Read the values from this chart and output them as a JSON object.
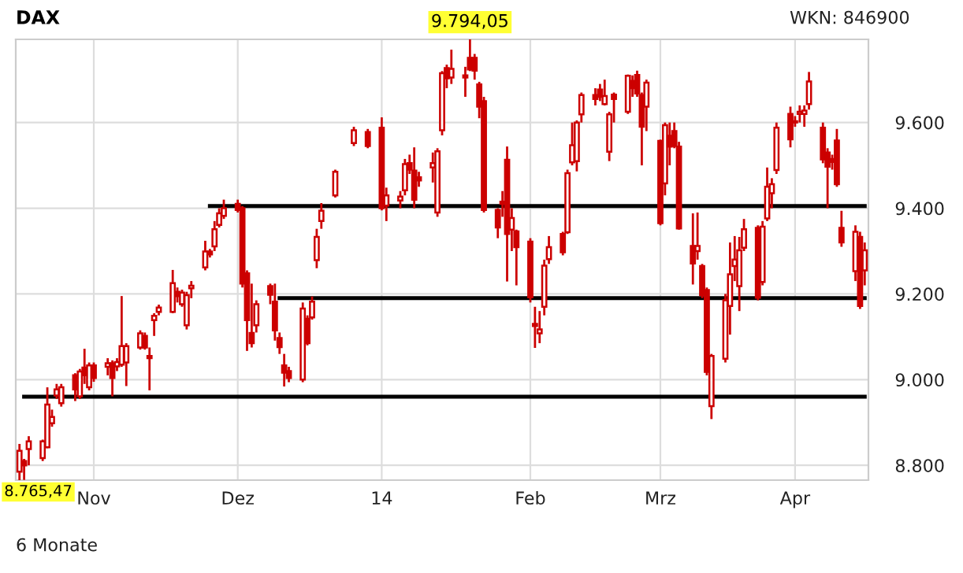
{
  "chart_data": {
    "type": "candlestick",
    "title": "DAX",
    "color": "#cc0000",
    "x": [
      "2013-10-16",
      "2013-10-17",
      "2013-10-18",
      "2013-10-21",
      "2013-10-22",
      "2013-10-23",
      "2013-10-24",
      "2013-10-25",
      "2013-10-28",
      "2013-10-29",
      "2013-10-30",
      "2013-10-31",
      "2013-11-01",
      "2013-11-04",
      "2013-11-05",
      "2013-11-06",
      "2013-11-07",
      "2013-11-08",
      "2013-11-11",
      "2013-11-12",
      "2013-11-13",
      "2013-11-14",
      "2013-11-15",
      "2013-11-18",
      "2013-11-19",
      "2013-11-20",
      "2013-11-21",
      "2013-11-22",
      "2013-11-25",
      "2013-11-26",
      "2013-11-27",
      "2013-11-28",
      "2013-11-29",
      "2013-12-02",
      "2013-12-03",
      "2013-12-04",
      "2013-12-05",
      "2013-12-06",
      "2013-12-09",
      "2013-12-10",
      "2013-12-11",
      "2013-12-12",
      "2013-12-13",
      "2013-12-16",
      "2013-12-17",
      "2013-12-18",
      "2013-12-19",
      "2013-12-20",
      "2013-12-23",
      "2013-12-27",
      "2013-12-30",
      "2014-01-02",
      "2014-01-03",
      "2014-01-06",
      "2014-01-07",
      "2014-01-08",
      "2014-01-09",
      "2014-01-10",
      "2014-01-13",
      "2014-01-14",
      "2014-01-15",
      "2014-01-16",
      "2014-01-17",
      "2014-01-20",
      "2014-01-21",
      "2014-01-22",
      "2014-01-23",
      "2014-01-24",
      "2014-01-27",
      "2014-01-28",
      "2014-01-29",
      "2014-01-30",
      "2014-01-31",
      "2014-02-03",
      "2014-02-04",
      "2014-02-05",
      "2014-02-06",
      "2014-02-07",
      "2014-02-10",
      "2014-02-11",
      "2014-02-12",
      "2014-02-13",
      "2014-02-14",
      "2014-02-17",
      "2014-02-18",
      "2014-02-19",
      "2014-02-20",
      "2014-02-21",
      "2014-02-24",
      "2014-02-25",
      "2014-02-26",
      "2014-02-27",
      "2014-02-28",
      "2014-03-03",
      "2014-03-04",
      "2014-03-05",
      "2014-03-06",
      "2014-03-07",
      "2014-03-10",
      "2014-03-11",
      "2014-03-12",
      "2014-03-13",
      "2014-03-14",
      "2014-03-17",
      "2014-03-18",
      "2014-03-19",
      "2014-03-20",
      "2014-03-21",
      "2014-03-24",
      "2014-03-25",
      "2014-03-26",
      "2014-03-27",
      "2014-03-28",
      "2014-03-31",
      "2014-04-01",
      "2014-04-02",
      "2014-04-03",
      "2014-04-04",
      "2014-04-07",
      "2014-04-08",
      "2014-04-09",
      "2014-04-10",
      "2014-04-11",
      "2014-04-14",
      "2014-04-15",
      "2014-04-16"
    ],
    "ohlc": [
      [
        8785,
        8850,
        8765.47,
        8834
      ],
      [
        8810,
        8815,
        8766,
        8800
      ],
      [
        8838,
        8868,
        8800,
        8856
      ],
      [
        8817,
        8860,
        8810,
        8856
      ],
      [
        8842,
        8982,
        8840,
        8942
      ],
      [
        8898,
        8930,
        8890,
        8913
      ],
      [
        8963,
        8990,
        8955,
        8977
      ],
      [
        8945,
        8990,
        8937,
        8982
      ],
      [
        9010,
        9015,
        8950,
        8977
      ],
      [
        8961,
        9025,
        8955,
        9019
      ],
      [
        9028,
        9072,
        8990,
        9010
      ],
      [
        8982,
        9040,
        8975,
        9033
      ],
      [
        9033,
        9040,
        8995,
        9004
      ],
      [
        9030,
        9050,
        9010,
        9038
      ],
      [
        9038,
        9045,
        8961,
        9004
      ],
      [
        9031,
        9050,
        9020,
        9041
      ],
      [
        9035,
        9195,
        9030,
        9078
      ],
      [
        9040,
        9085,
        8985,
        9078
      ],
      [
        9075,
        9115,
        9070,
        9108
      ],
      [
        9102,
        9110,
        9070,
        9075
      ],
      [
        9055,
        9075,
        8975,
        9050
      ],
      [
        9139,
        9155,
        9102,
        9149
      ],
      [
        9158,
        9175,
        9150,
        9168
      ],
      [
        9158,
        9256,
        9155,
        9225
      ],
      [
        9205,
        9215,
        9180,
        9195
      ],
      [
        9176,
        9210,
        9170,
        9203
      ],
      [
        9127,
        9205,
        9117,
        9197
      ],
      [
        9213,
        9230,
        9190,
        9219
      ],
      [
        9262,
        9324,
        9255,
        9299
      ],
      [
        9299,
        9305,
        9285,
        9292
      ],
      [
        9311,
        9370,
        9300,
        9351
      ],
      [
        9361,
        9400,
        9355,
        9388
      ],
      [
        9382,
        9420,
        9375,
        9400
      ],
      [
        9410,
        9420,
        9390,
        9396
      ],
      [
        9400,
        9405,
        9215,
        9224
      ],
      [
        9248,
        9255,
        9067,
        9139
      ],
      [
        9109,
        9224,
        9075,
        9085
      ],
      [
        9127,
        9185,
        9110,
        9176
      ],
      [
        9218,
        9224,
        9176,
        9198
      ],
      [
        9182,
        9224,
        9091,
        9115
      ],
      [
        9097,
        9110,
        9060,
        9076
      ],
      [
        9033,
        9060,
        8984,
        9016
      ],
      [
        9020,
        9030,
        8994,
        9004
      ],
      [
        9000,
        9180,
        8994,
        9166
      ],
      [
        9142,
        9150,
        9080,
        9085
      ],
      [
        9145,
        9194,
        9140,
        9182
      ],
      [
        9279,
        9352,
        9260,
        9333
      ],
      [
        9370,
        9412,
        9352,
        9394
      ],
      [
        9430,
        9490,
        9425,
        9485
      ],
      [
        9552,
        9590,
        9545,
        9582
      ],
      [
        9578,
        9585,
        9540,
        9545
      ],
      [
        9588,
        9612,
        9395,
        9400
      ],
      [
        9406,
        9448,
        9370,
        9430
      ],
      [
        9418,
        9440,
        9400,
        9427
      ],
      [
        9442,
        9515,
        9430,
        9503
      ],
      [
        9505,
        9525,
        9480,
        9490
      ],
      [
        9488,
        9542,
        9400,
        9420
      ],
      [
        9472,
        9485,
        9450,
        9465
      ],
      [
        9495,
        9530,
        9460,
        9505
      ],
      [
        9390,
        9540,
        9380,
        9533
      ],
      [
        9582,
        9720,
        9570,
        9715
      ],
      [
        9727,
        9735,
        9680,
        9703
      ],
      [
        9705,
        9770,
        9690,
        9725
      ],
      [
        9710,
        9730,
        9660,
        9705
      ],
      [
        9751,
        9794.05,
        9720,
        9724
      ],
      [
        9751,
        9760,
        9700,
        9721
      ],
      [
        9689,
        9695,
        9610,
        9637
      ],
      [
        9650,
        9660,
        9390,
        9396
      ],
      [
        9396,
        9400,
        9330,
        9355
      ],
      [
        9415,
        9440,
        9380,
        9410
      ],
      [
        9513,
        9544,
        9229,
        9340
      ],
      [
        9350,
        9400,
        9300,
        9377
      ],
      [
        9346,
        9350,
        9220,
        9309
      ],
      [
        9322,
        9330,
        9180,
        9192
      ],
      [
        9130,
        9170,
        9074,
        9125
      ],
      [
        9108,
        9160,
        9085,
        9117
      ],
      [
        9170,
        9280,
        9150,
        9266
      ],
      [
        9281,
        9335,
        9270,
        9309
      ],
      [
        9340,
        9345,
        9290,
        9297
      ],
      [
        9344,
        9490,
        9340,
        9482
      ],
      [
        9507,
        9600,
        9500,
        9547
      ],
      [
        9510,
        9605,
        9486,
        9600
      ],
      [
        9619,
        9670,
        9600,
        9664
      ],
      [
        9664,
        9680,
        9640,
        9655
      ],
      [
        9677,
        9690,
        9650,
        9660
      ],
      [
        9643,
        9700,
        9640,
        9662
      ],
      [
        9532,
        9625,
        9510,
        9619
      ],
      [
        9665,
        9670,
        9600,
        9655
      ],
      [
        9625,
        9712,
        9620,
        9709
      ],
      [
        9697,
        9710,
        9660,
        9680
      ],
      [
        9711,
        9721,
        9660,
        9668
      ],
      [
        9664,
        9670,
        9500,
        9590
      ],
      [
        9637,
        9700,
        9580,
        9693
      ],
      [
        9557,
        9560,
        9360,
        9365
      ],
      [
        9458,
        9600,
        9430,
        9594
      ],
      [
        9569,
        9600,
        9500,
        9544
      ],
      [
        9580,
        9600,
        9540,
        9545
      ],
      [
        9544,
        9555,
        9350,
        9353
      ],
      [
        9312,
        9388,
        9222,
        9271
      ],
      [
        9300,
        9390,
        9280,
        9312
      ],
      [
        9265,
        9270,
        9190,
        9197
      ],
      [
        9209,
        9215,
        9010,
        9018
      ],
      [
        8938,
        9060,
        8908,
        9055
      ],
      [
        9049,
        9200,
        9040,
        9185
      ],
      [
        9172,
        9320,
        9105,
        9246
      ],
      [
        9265,
        9335,
        9230,
        9280
      ],
      [
        9218,
        9333,
        9160,
        9302
      ],
      [
        9308,
        9375,
        9300,
        9351
      ],
      [
        9354,
        9360,
        9185,
        9191
      ],
      [
        9228,
        9370,
        9220,
        9357
      ],
      [
        9376,
        9495,
        9370,
        9450
      ],
      [
        9435,
        9470,
        9400,
        9456
      ],
      [
        9489,
        9600,
        9480,
        9588
      ],
      [
        9620,
        9637,
        9542,
        9561
      ],
      [
        9603,
        9615,
        9590,
        9600
      ],
      [
        9620,
        9640,
        9600,
        9625
      ],
      [
        9620,
        9640,
        9590,
        9628
      ],
      [
        9643,
        9718,
        9630,
        9696
      ],
      [
        9588,
        9600,
        9505,
        9514
      ],
      [
        9530,
        9540,
        9400,
        9497
      ],
      [
        9515,
        9525,
        9490,
        9508
      ],
      [
        9558,
        9585,
        9450,
        9456
      ],
      [
        9354,
        9394,
        9310,
        9320
      ],
      [
        9253,
        9360,
        9230,
        9345
      ],
      [
        9333,
        9345,
        9165,
        9172
      ],
      [
        9255,
        9320,
        9220,
        9302
      ]
    ],
    "series": [
      {
        "type": "line",
        "x": [
          "2013-10-17",
          "2014-04-16"
        ],
        "values": [
          8960,
          8960
        ],
        "color": "#000000"
      },
      {
        "type": "line",
        "x": [
          "2013-11-26",
          "2014-04-16"
        ],
        "values": [
          9405,
          9405
        ],
        "color": "#000000"
      },
      {
        "type": "line",
        "x": [
          "2013-12-11",
          "2014-04-16"
        ],
        "values": [
          9190,
          9190
        ],
        "color": "#000000"
      }
    ],
    "ylim": [
      8765.47,
      9794.05
    ],
    "yticks": [
      {
        "value": 8800,
        "label": "8.800"
      },
      {
        "value": 9000,
        "label": "9.000"
      },
      {
        "value": 9200,
        "label": "9.200"
      },
      {
        "value": 9400,
        "label": "9.400"
      },
      {
        "value": 9600,
        "label": "9.600"
      }
    ],
    "xlim": [
      "2013-10-16",
      "2014-04-16"
    ],
    "xticks": [
      {
        "value": "2013-11-01",
        "label": "Nov"
      },
      {
        "value": "2013-12-02",
        "label": "Dez"
      },
      {
        "value": "2014-01-02",
        "label": "14"
      },
      {
        "value": "2014-02-03",
        "label": "Feb"
      },
      {
        "value": "2014-03-03",
        "label": "Mrz"
      },
      {
        "value": "2014-04-01",
        "label": "Apr"
      }
    ],
    "grid": true,
    "annotations": [
      {
        "text": "9.794,05",
        "x": "2014-01-21",
        "y": 9794.05
      },
      {
        "text": "8.765,47",
        "x": "2013-10-16",
        "y": 8765.47
      },
      "WKN: 846900",
      "6 Monate"
    ]
  }
}
